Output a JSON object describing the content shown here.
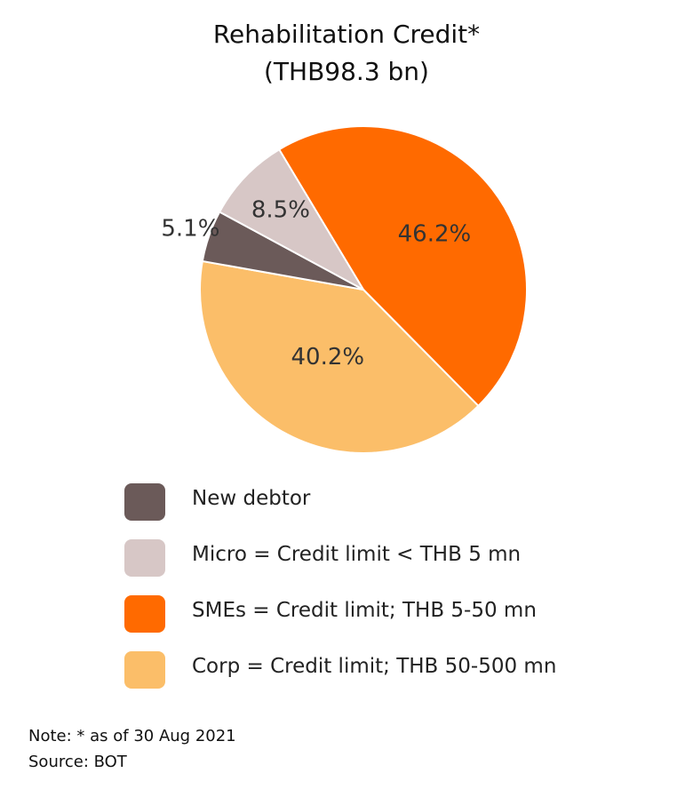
{
  "chart_data": {
    "type": "pie",
    "title": "Rehabilitation Credit*",
    "subtitle": "(THB98.3 bn)",
    "slices": [
      {
        "label": "SMEs = Credit limit; THB 5-50 mn",
        "value": 46.2,
        "value_label": "46.2%",
        "color": "#ff6a00"
      },
      {
        "label": "Corp = Credit limit; THB 50-500 mn",
        "value": 40.2,
        "value_label": "40.2%",
        "color": "#fbbe69"
      },
      {
        "label": "New debtor",
        "value": 5.1,
        "value_label": "5.1%",
        "color": "#6b5a59"
      },
      {
        "label": "Micro = Credit limit < THB 5 mn",
        "value": 8.5,
        "value_label": "8.5%",
        "color": "#d7c7c6"
      }
    ],
    "legend": [
      {
        "label": "New debtor",
        "color": "#6b5a59"
      },
      {
        "label": "Micro = Credit limit < THB 5 mn",
        "color": "#d7c7c6"
      },
      {
        "label": "SMEs = Credit limit; THB 5-50 mn",
        "color": "#ff6a00"
      },
      {
        "label": "Corp = Credit limit; THB 50-500 mn",
        "color": "#fbbe69"
      }
    ],
    "legend_position": "bottom"
  },
  "notes": {
    "note": "Note: * as of 30 Aug 2021",
    "source": "Source:  BOT"
  }
}
